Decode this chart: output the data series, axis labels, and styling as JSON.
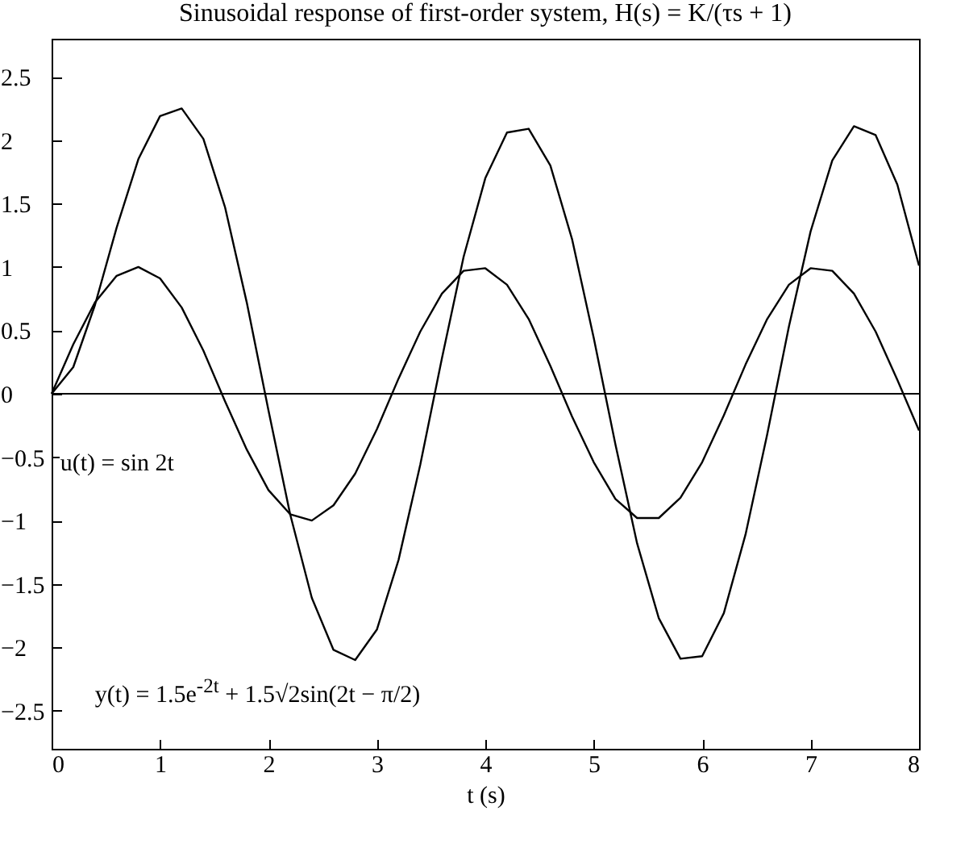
{
  "chart_data": {
    "type": "line",
    "title": "Sinusoidal response of first-order system, H(s) = K/(τs + 1)",
    "xlabel": "t (s)",
    "x": [
      0,
      0.2,
      0.4,
      0.6,
      0.8,
      1,
      1.2,
      1.4,
      1.6,
      1.8,
      2,
      2.2,
      2.4,
      2.6,
      2.8,
      3,
      3.2,
      3.4,
      3.6,
      3.8,
      4,
      4.2,
      4.4,
      4.6,
      4.8,
      5,
      5.2,
      5.4,
      5.6,
      5.8,
      6,
      6.2,
      6.4,
      6.6,
      6.8,
      7,
      7.2,
      7.4,
      7.6,
      7.8,
      8
    ],
    "series": [
      {
        "color": "#000000",
        "values": [
          0,
          0.39,
          0.72,
          0.93,
          1.0,
          0.91,
          0.68,
          0.34,
          -0.06,
          -0.44,
          -0.76,
          -0.95,
          -1.0,
          -0.88,
          -0.63,
          -0.28,
          0.12,
          0.49,
          0.79,
          0.97,
          0.99,
          0.86,
          0.59,
          0.22,
          -0.18,
          -0.54,
          -0.83,
          -0.98,
          -0.98,
          -0.82,
          -0.54,
          -0.17,
          0.23,
          0.59,
          0.86,
          0.99,
          0.97,
          0.79,
          0.49,
          0.11,
          -0.29
        ]
      },
      {
        "color": "#000000",
        "values": [
          0,
          0.21,
          0.7,
          1.31,
          1.85,
          2.19,
          2.25,
          2.01,
          1.47,
          0.72,
          -0.13,
          -0.95,
          -1.61,
          -2.02,
          -2.1,
          -1.86,
          -1.31,
          -0.56,
          0.28,
          1.08,
          1.7,
          2.06,
          2.09,
          1.8,
          1.22,
          0.44,
          -0.4,
          -1.18,
          -1.77,
          -2.09,
          -2.07,
          -1.73,
          -1.11,
          -0.32,
          0.53,
          1.28,
          1.84,
          2.11,
          2.04,
          1.65,
          1.01
        ]
      }
    ],
    "xlim": [
      0,
      8
    ],
    "xticks": [
      0,
      1,
      2,
      3,
      4,
      5,
      6,
      7,
      8
    ],
    "ylim": [
      -2.8,
      2.8
    ],
    "yticks": [
      -2.5,
      -2,
      -1.5,
      -1,
      -0.5,
      0,
      0.5,
      1,
      1.5,
      2,
      2.5
    ],
    "ref_lines": [
      {
        "axis": "y",
        "value": 0,
        "color": "#000000"
      }
    ],
    "annotations": [
      "u(t) = sin 2t",
      "y(t) = 1.5e$^{-2t}$ + 1.5√2sin(2t − π/2)"
    ],
    "grid": false,
    "legend": false
  }
}
